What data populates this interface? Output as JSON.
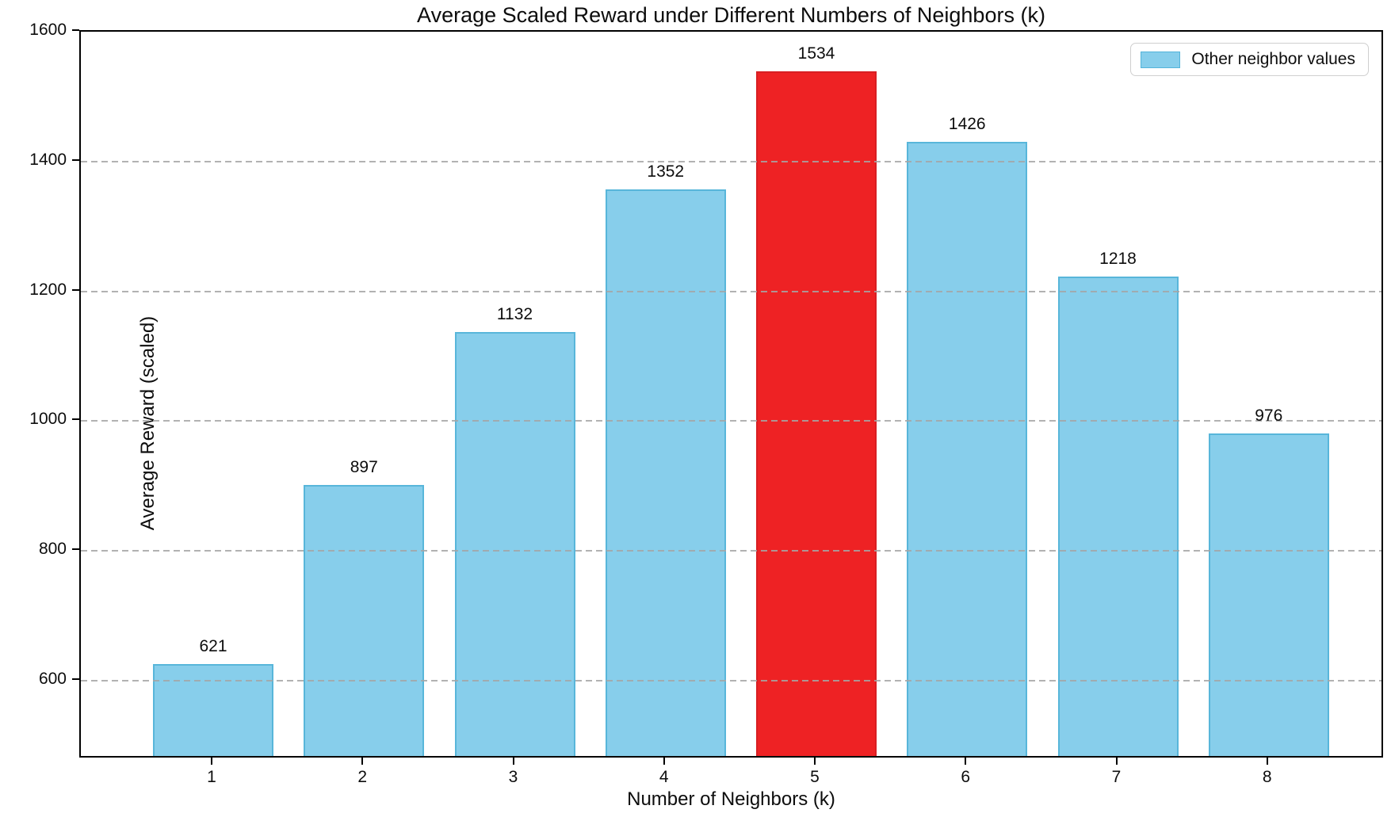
{
  "chart_data": {
    "type": "bar",
    "title": "Average Scaled Reward under Different Numbers of Neighbors (k)",
    "xlabel": "Number of Neighbors (k)",
    "ylabel": "Average Reward (scaled)",
    "categories": [
      "1",
      "2",
      "3",
      "4",
      "5",
      "6",
      "7",
      "8"
    ],
    "values": [
      621,
      897,
      1132,
      1352,
      1534,
      1426,
      1218,
      976
    ],
    "bar_value_labels": [
      "621",
      "897",
      "1132",
      "1352",
      "1534",
      "1426",
      "1218",
      "976"
    ],
    "highlight": {
      "index": 4,
      "category": "5",
      "color": "#ee2224"
    },
    "bar_color": "#87CEEB",
    "bar_edge_color": "#58b6da",
    "y_ticks": [
      600,
      800,
      1000,
      1200,
      1400,
      1600
    ],
    "ylim": [
      479,
      1600
    ],
    "grid": "horizontal-dashed-over-bars",
    "legend": {
      "label": "Other neighbor values",
      "position": "upper right"
    }
  }
}
